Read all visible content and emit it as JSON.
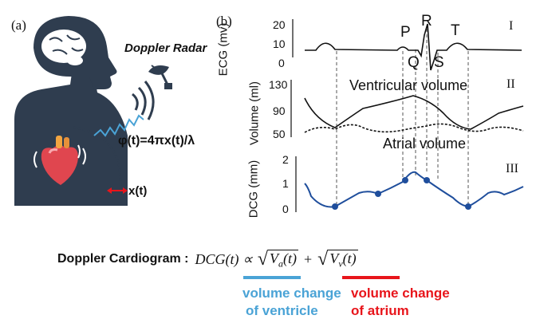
{
  "panel_a": {
    "label": "(a)",
    "radar_label": "Doppler Radar",
    "phase_formula": "φ(t)=4πx(t)/λ",
    "displacement_label": "x(t)"
  },
  "panel_b": {
    "label": "(b)",
    "ecg": {
      "axis_title": "ECG (mv)",
      "ticks": [
        "20",
        "10",
        "0"
      ],
      "roman": "I",
      "wave_labels": [
        "P",
        "R",
        "T",
        "Q",
        "S"
      ]
    },
    "volume": {
      "axis_title": "Volume (ml)",
      "ticks": [
        "130",
        "90",
        "50"
      ],
      "roman": "II",
      "ventricular_label": "Ventricular volume",
      "atrial_label": "Atrial volume"
    },
    "dcg": {
      "axis_title": "DCG (mm)",
      "ticks": [
        "2",
        "1",
        "0"
      ],
      "roman": "III"
    }
  },
  "equation": {
    "prefix": "Doppler Cardiogram :",
    "lhs": "DCG(t) ∝",
    "term_a": "V",
    "term_a_sub": "a",
    "term_v": "V",
    "term_v_sub": "v",
    "arg": "(t)",
    "plus": "+"
  },
  "captions": {
    "left_line1": "volume change",
    "left_line2": "of ventricle",
    "right_line1": "volume change",
    "right_line2": "of atrium"
  },
  "colors": {
    "silhouette": "#2f3d4f",
    "wave": "#4aa3d6",
    "dcg": "#1f4e9c",
    "underline_left": "#4aa3d6",
    "underline_right": "#e8151b",
    "caption_left": "#4aa3d6",
    "caption_right": "#e8151b",
    "arrow": "#e8151b"
  }
}
